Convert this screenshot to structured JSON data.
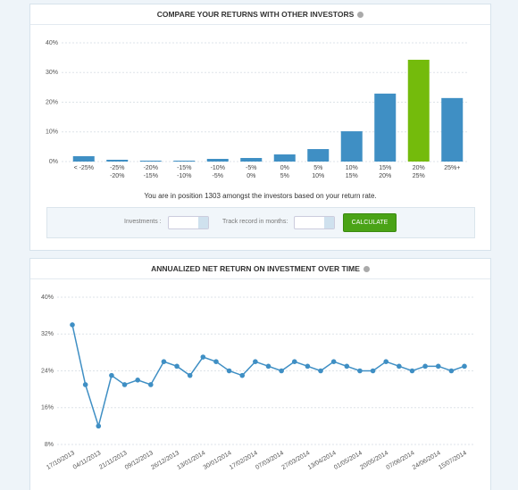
{
  "chart_data": [
    {
      "type": "bar",
      "title": "COMPARE YOUR RETURNS WITH OTHER INVESTORS",
      "categories": [
        "< -25%",
        "-25%\n-20%",
        "-20%\n-15%",
        "-15%\n-10%",
        "-10%\n-5%",
        "-5%\n0%",
        "0%\n5%",
        "5%\n10%",
        "10%\n15%",
        "15%\n20%",
        "20%\n25%",
        "25%+"
      ],
      "values": [
        1.8,
        0.6,
        0.3,
        0.3,
        0.9,
        1.2,
        2.4,
        4.2,
        10.2,
        22.9,
        34.3,
        21.4
      ],
      "colors": [
        "#3f8fc4",
        "#3f8fc4",
        "#3f8fc4",
        "#3f8fc4",
        "#3f8fc4",
        "#3f8fc4",
        "#3f8fc4",
        "#3f8fc4",
        "#3f8fc4",
        "#3f8fc4",
        "#74bb0c",
        "#3f8fc4"
      ],
      "ylim": [
        0,
        40
      ],
      "yticks": [
        {
          "value": 0,
          "label": "0%"
        },
        {
          "value": 10,
          "label": "10%"
        },
        {
          "value": 20,
          "label": "20%"
        },
        {
          "value": 30,
          "label": "30%"
        },
        {
          "value": 40,
          "label": "40%"
        }
      ],
      "grid": true
    },
    {
      "type": "line",
      "title": "ANNUALIZED NET RETURN ON INVESTMENT OVER TIME",
      "categories": [
        "17/10/2013",
        null,
        "04/11/2013",
        null,
        "21/11/2013",
        null,
        "09/12/2013",
        null,
        "26/12/2013",
        null,
        "13/01/2014",
        null,
        "30/01/2014",
        null,
        "17/02/2014",
        null,
        "07/03/2014",
        null,
        "27/03/2014",
        null,
        "13/04/2014",
        null,
        "01/05/2014",
        null,
        "20/05/2014",
        null,
        "07/06/2014",
        null,
        "24/06/2014",
        null,
        "15/07/2014"
      ],
      "series": [
        {
          "color": "#3f8fc4",
          "values": [
            34,
            21,
            12,
            23,
            21,
            22,
            21,
            26,
            25,
            23,
            27,
            26,
            24,
            23,
            26,
            25,
            24,
            26,
            25,
            24,
            26,
            25,
            24,
            24,
            26,
            25,
            24,
            25,
            25,
            24,
            25
          ]
        }
      ],
      "ylim": [
        8,
        40
      ],
      "yticks": [
        {
          "value": 8,
          "label": "8%"
        },
        {
          "value": 16,
          "label": "16%"
        },
        {
          "value": 24,
          "label": "24%"
        },
        {
          "value": 32,
          "label": "32%"
        },
        {
          "value": 40,
          "label": "40%"
        }
      ],
      "grid": true
    }
  ],
  "form": {
    "position_text": "You are in position 1303 amongst the investors based on your return rate.",
    "investments_label": "Investments :",
    "track_label": "Track record in months:",
    "button": "CALCULATE"
  }
}
